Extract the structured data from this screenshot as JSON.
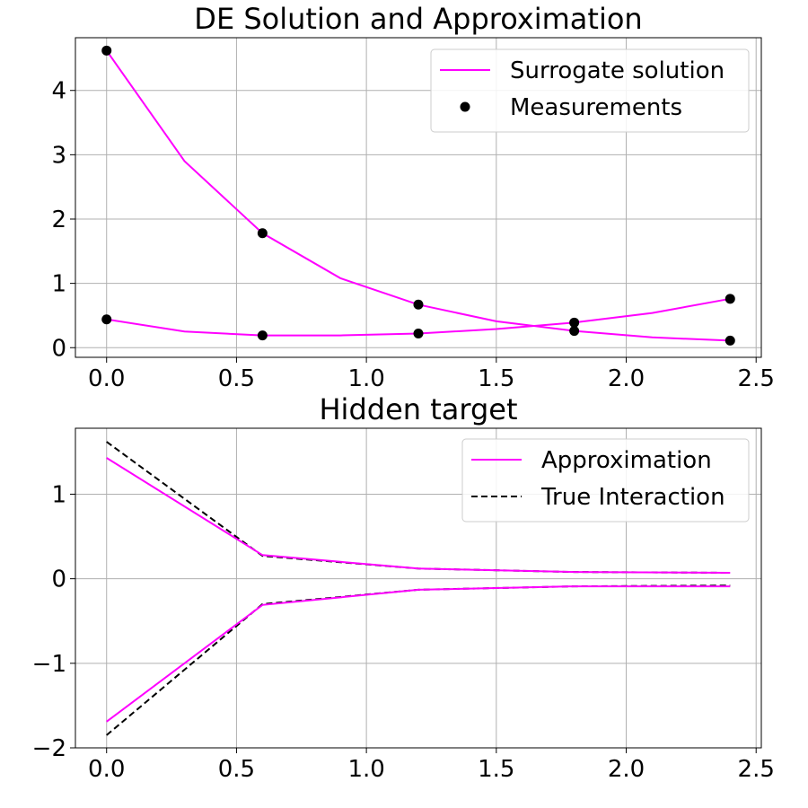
{
  "colors": {
    "surrogate": "#ff00ff",
    "measurement": "#000000",
    "true_interaction": "#000000",
    "grid": "#b0b0b0"
  },
  "chart_data": [
    {
      "type": "line",
      "title": "DE Solution and Approximation",
      "xlabel": "",
      "ylabel": "",
      "xlim": [
        -0.12,
        2.52
      ],
      "ylim": [
        -0.15,
        4.82
      ],
      "xticks": [
        0.0,
        0.5,
        1.0,
        1.5,
        2.0,
        2.5
      ],
      "xtick_labels": [
        "0.0",
        "0.5",
        "1.0",
        "1.5",
        "2.0",
        "2.5"
      ],
      "yticks": [
        0,
        1,
        2,
        3,
        4
      ],
      "ytick_labels": [
        "0",
        "1",
        "2",
        "3",
        "4"
      ],
      "grid": true,
      "legend_position": "top-right",
      "legend": [
        {
          "label": "Surrogate solution",
          "kind": "line"
        },
        {
          "label": "Measurements",
          "kind": "marker"
        }
      ],
      "series": [
        {
          "legend_index": 0,
          "style": "solid",
          "color_key": "surrogate",
          "x": [
            0.0,
            0.3,
            0.6,
            0.9,
            1.2,
            1.5,
            1.8,
            2.1,
            2.4
          ],
          "y": [
            4.62,
            2.9,
            1.78,
            1.08,
            0.67,
            0.41,
            0.26,
            0.16,
            0.11
          ]
        },
        {
          "legend_index": -1,
          "style": "solid",
          "color_key": "surrogate",
          "x": [
            0.0,
            0.3,
            0.6,
            0.9,
            1.2,
            1.5,
            1.8,
            2.1,
            2.4
          ],
          "y": [
            0.44,
            0.25,
            0.19,
            0.19,
            0.22,
            0.29,
            0.39,
            0.54,
            0.76
          ]
        }
      ],
      "scatter": [
        {
          "legend_index": 1,
          "color_key": "measurement",
          "x": [
            0.0,
            0.6,
            1.2,
            1.8,
            2.4,
            0.0,
            0.6,
            1.2,
            1.8,
            2.4
          ],
          "y": [
            4.62,
            1.78,
            0.67,
            0.26,
            0.11,
            0.44,
            0.19,
            0.22,
            0.39,
            0.76
          ]
        }
      ]
    },
    {
      "type": "line",
      "title": "Hidden target",
      "xlabel": "",
      "ylabel": "",
      "xlim": [
        -0.12,
        2.52
      ],
      "ylim": [
        -2.0,
        1.78
      ],
      "xticks": [
        0.0,
        0.5,
        1.0,
        1.5,
        2.0,
        2.5
      ],
      "xtick_labels": [
        "0.0",
        "0.5",
        "1.0",
        "1.5",
        "2.0",
        "2.5"
      ],
      "yticks": [
        -2,
        -1,
        0,
        1
      ],
      "ytick_labels": [
        "−2",
        "−1",
        "0",
        "1"
      ],
      "grid": true,
      "legend_position": "top-right",
      "legend": [
        {
          "label": "Approximation",
          "kind": "line"
        },
        {
          "label": "True Interaction",
          "kind": "dashed"
        }
      ],
      "series": [
        {
          "legend_index": 1,
          "style": "dashed",
          "color_key": "true_interaction",
          "x": [
            0.0,
            0.6,
            1.2,
            1.8,
            2.4
          ],
          "y": [
            1.62,
            0.27,
            0.12,
            0.08,
            0.07
          ]
        },
        {
          "legend_index": -1,
          "style": "dashed",
          "color_key": "true_interaction",
          "x": [
            0.0,
            0.6,
            1.2,
            1.8,
            2.4
          ],
          "y": [
            -1.85,
            -0.3,
            -0.13,
            -0.09,
            -0.08
          ]
        },
        {
          "legend_index": 0,
          "style": "solid",
          "color_key": "surrogate",
          "x": [
            0.0,
            0.6,
            1.2,
            1.8,
            2.4
          ],
          "y": [
            1.43,
            0.28,
            0.12,
            0.08,
            0.07
          ]
        },
        {
          "legend_index": -1,
          "style": "solid",
          "color_key": "surrogate",
          "x": [
            0.0,
            0.6,
            1.2,
            1.8,
            2.4
          ],
          "y": [
            -1.69,
            -0.31,
            -0.13,
            -0.09,
            -0.09
          ]
        }
      ],
      "scatter": []
    }
  ]
}
